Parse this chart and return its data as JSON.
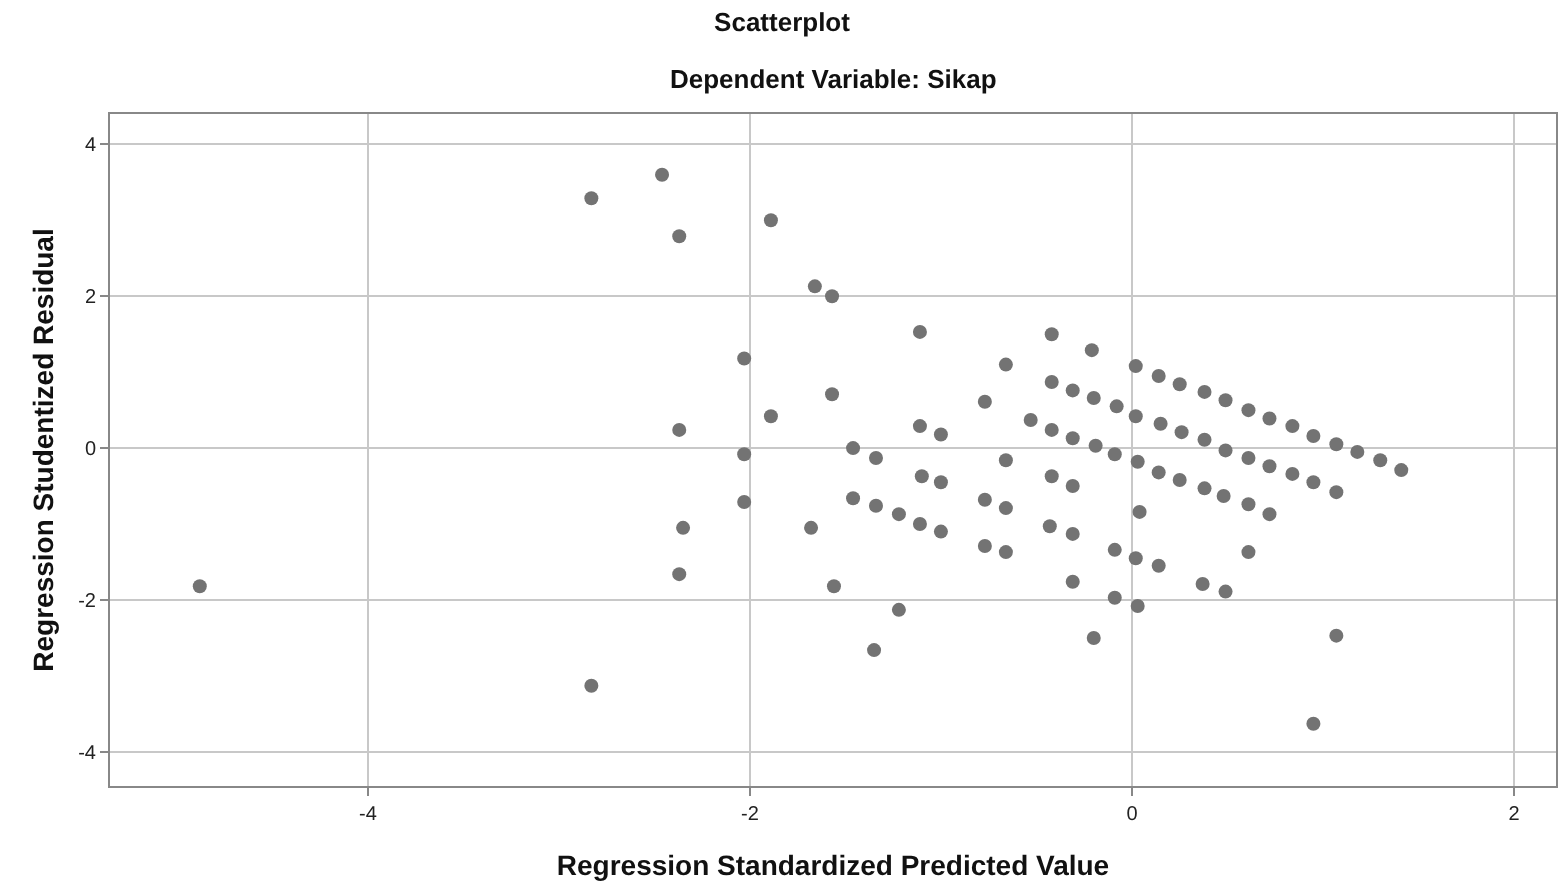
{
  "chart_data": {
    "type": "scatter",
    "title": "Scatterplot",
    "subtitle": "Dependent Variable: Sikap",
    "xlabel": "Regression Standardized Predicted Value",
    "ylabel": "Regression Studentized Residual",
    "xlim": [
      -5.35,
      2.22
    ],
    "ylim": [
      -4.45,
      4.4
    ],
    "xticks": [
      -4,
      -2,
      0,
      2
    ],
    "yticks": [
      -4,
      -2,
      0,
      2,
      4
    ],
    "grid": true,
    "marker": "circle",
    "series": [
      {
        "color": "#737373",
        "x": [
          -4.88,
          -2.83,
          -2.83,
          -2.46,
          -2.37,
          -2.37,
          -2.35,
          -2.37,
          -2.03,
          -2.03,
          -2.03,
          -1.89,
          -1.89,
          -1.66,
          -1.57,
          -1.57,
          -1.68,
          -1.56,
          -1.46,
          -1.34,
          -1.46,
          -1.34,
          -1.22,
          -1.11,
          -1.0,
          -1.11,
          -1.0,
          -1.11,
          -1.1,
          -1.0,
          -0.77,
          -0.77,
          -0.66,
          -0.66,
          -0.66,
          -0.77,
          -0.66,
          -1.22,
          -1.35,
          -0.42,
          -0.21,
          0.02,
          0.14,
          0.25,
          0.38,
          0.49,
          0.61,
          0.72,
          0.84,
          0.95,
          1.07,
          1.18,
          1.3,
          1.41,
          -0.42,
          -0.31,
          -0.2,
          -0.08,
          0.02,
          0.15,
          0.26,
          0.38,
          0.49,
          0.61,
          0.72,
          0.84,
          0.95,
          1.07,
          -0.53,
          -0.42,
          -0.31,
          -0.19,
          -0.09,
          0.03,
          0.14,
          0.25,
          0.38,
          0.48,
          0.61,
          0.72,
          -0.42,
          -0.31,
          -0.43,
          -0.31,
          0.04,
          -0.09,
          0.02,
          0.14,
          0.61,
          -0.31,
          0.37,
          0.49,
          -0.09,
          0.03,
          -0.2,
          1.07,
          0.95
        ],
        "values": [
          -1.82,
          3.29,
          -3.13,
          3.6,
          2.79,
          0.24,
          -1.05,
          -1.66,
          1.18,
          -0.08,
          -0.71,
          0.42,
          3.0,
          2.13,
          2.0,
          0.71,
          -1.05,
          -1.82,
          0.0,
          -0.13,
          -0.66,
          -0.76,
          -0.87,
          -1.0,
          -1.1,
          0.29,
          0.18,
          1.53,
          -0.37,
          -0.45,
          0.61,
          -0.68,
          1.1,
          -0.16,
          -0.79,
          -1.29,
          -1.37,
          -2.13,
          -2.66,
          1.5,
          1.29,
          1.08,
          0.95,
          0.84,
          0.74,
          0.63,
          0.5,
          0.39,
          0.29,
          0.16,
          0.05,
          -0.05,
          -0.16,
          -0.29,
          0.87,
          0.76,
          0.66,
          0.55,
          0.42,
          0.32,
          0.21,
          0.11,
          -0.03,
          -0.13,
          -0.24,
          -0.34,
          -0.45,
          -0.58,
          0.37,
          0.24,
          0.13,
          0.03,
          -0.08,
          -0.18,
          -0.32,
          -0.42,
          -0.53,
          -0.63,
          -0.74,
          -0.87,
          -0.37,
          -0.5,
          -1.03,
          -1.13,
          -0.84,
          -1.34,
          -1.45,
          -1.55,
          -1.37,
          -1.76,
          -1.79,
          -1.89,
          -1.97,
          -2.08,
          -2.5,
          -2.47,
          -3.63
        ]
      }
    ]
  }
}
